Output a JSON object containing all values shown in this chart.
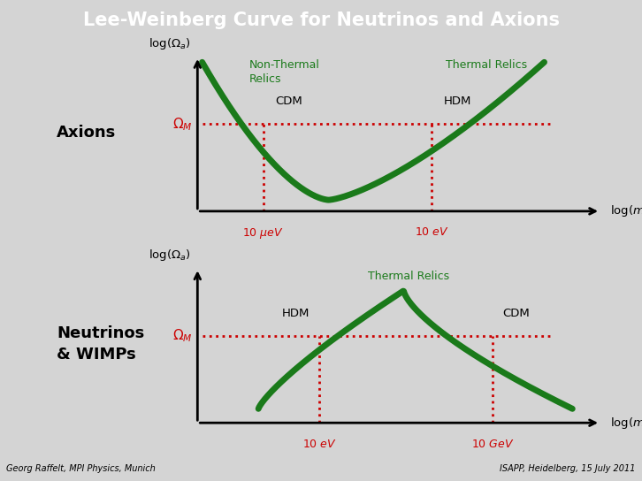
{
  "title": "Lee-Weinberg Curve for Neutrinos and Axions",
  "title_bg": "#636363",
  "title_color": "white",
  "bg_color": "#d4d4d4",
  "curve_color": "#1a7a1a",
  "curve_lw": 5,
  "omega_line_color": "#cc0000",
  "vline_color": "#cc0000",
  "footer_left": "Georg Raffelt, MPI Physics, Munich",
  "footer_right": "ISAPP, Heidelberg, 15 July 2011"
}
